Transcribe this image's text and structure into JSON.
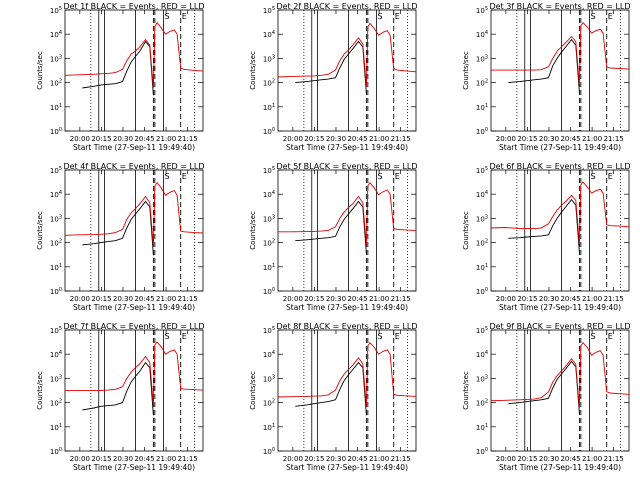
{
  "chart_data": {
    "type": "line",
    "layout": "3x3 grid",
    "xlabel": "Start Time (27-Sep-11 19:49:40)",
    "ylabel": "Counts/sec",
    "x_unit": "minutes after 19:49:40",
    "xlim": [
      0,
      96
    ],
    "ylim": [
      1,
      100000
    ],
    "y_scale": "log",
    "x_tick_labels": [
      {
        "value": 10.33,
        "label": "20:00"
      },
      {
        "value": 25.33,
        "label": "20:15"
      },
      {
        "value": 40.33,
        "label": "20:30"
      },
      {
        "value": 55.33,
        "label": "20:45"
      },
      {
        "value": 70.33,
        "label": "21:00"
      },
      {
        "value": 85.33,
        "label": "21:15"
      }
    ],
    "y_tick_labels": [
      {
        "value": 1,
        "label": "10^0"
      },
      {
        "value": 10,
        "label": "10^1"
      },
      {
        "value": 100,
        "label": "10^2"
      },
      {
        "value": 1000,
        "label": "10^3"
      },
      {
        "value": 10000,
        "label": "10^4"
      },
      {
        "value": 100000,
        "label": "10^5"
      }
    ],
    "vertical_markers": {
      "dotted": [
        18.0,
        90.0
      ],
      "solid": [
        23.5,
        27.5,
        49.0,
        68.5
      ],
      "dashed": [
        61.5,
        62.5,
        80.5
      ]
    },
    "marker_letters": [
      {
        "text": "S",
        "x": 68.5
      },
      {
        "text": "E",
        "x": 80.5
      }
    ],
    "panels": [
      {
        "title": "Det 1f BLACK = Events, RED = LLD",
        "series": [
          {
            "name": "Events",
            "color": "#000000",
            "x": [
              12,
              20,
              25,
              30,
              35,
              40,
              43,
              46,
              49,
              52,
              56,
              59,
              61.5
            ],
            "y": [
              60,
              70,
              80,
              85,
              90,
              110,
              300,
              700,
              1200,
              2000,
              5000,
              3000,
              30
            ]
          },
          {
            "name": "LLD",
            "color": "#e00000",
            "x": [
              0,
              10,
              20,
              25,
              30,
              35,
              40,
              43,
              46,
              49,
              52,
              56,
              59,
              61.5,
              62.5,
              64,
              67,
              70,
              73,
              76,
              78,
              80.5,
              83,
              90,
              96
            ],
            "y": [
              200,
              210,
              220,
              230,
              240,
              260,
              350,
              800,
              1500,
              2000,
              3000,
              6000,
              3500,
              60,
              20000,
              30000,
              18000,
              10000,
              13000,
              15000,
              10000,
              400,
              350,
              320,
              300
            ]
          }
        ]
      },
      {
        "title": "Det 2f BLACK = Events, RED = LLD",
        "series": [
          {
            "name": "Events",
            "color": "#000000",
            "x": [
              12,
              20,
              25,
              30,
              35,
              40,
              43,
              46,
              49,
              52,
              56,
              59,
              61.5
            ],
            "y": [
              100,
              110,
              120,
              130,
              140,
              160,
              400,
              900,
              1500,
              2500,
              5000,
              3000,
              35
            ]
          },
          {
            "name": "LLD",
            "color": "#e00000",
            "x": [
              0,
              10,
              20,
              25,
              30,
              35,
              40,
              43,
              46,
              49,
              52,
              56,
              59,
              61.5,
              62.5,
              64,
              67,
              70,
              73,
              76,
              78,
              80.5,
              83,
              90,
              96
            ],
            "y": [
              170,
              180,
              185,
              190,
              200,
              220,
              330,
              800,
              1500,
              2200,
              3500,
              7000,
              4000,
              70,
              20000,
              28000,
              17000,
              9000,
              12000,
              14000,
              9000,
              380,
              330,
              300,
              280
            ]
          }
        ]
      },
      {
        "title": "Det 3f BLACK = Events, RED = LLD",
        "series": [
          {
            "name": "Events",
            "color": "#000000",
            "x": [
              12,
              20,
              25,
              30,
              35,
              40,
              43,
              46,
              49,
              52,
              56,
              59,
              61.5
            ],
            "y": [
              100,
              110,
              120,
              130,
              140,
              160,
              500,
              1000,
              1800,
              3000,
              6000,
              3500,
              40
            ]
          },
          {
            "name": "LLD",
            "color": "#e00000",
            "x": [
              0,
              10,
              20,
              25,
              30,
              35,
              40,
              43,
              46,
              49,
              52,
              56,
              59,
              61.5,
              62.5,
              64,
              67,
              70,
              73,
              76,
              78,
              80.5,
              83,
              90,
              96
            ],
            "y": [
              330,
              330,
              330,
              330,
              330,
              340,
              450,
              1000,
              2000,
              3000,
              4500,
              8000,
              5000,
              80,
              22000,
              30000,
              20000,
              11000,
              14000,
              16000,
              11000,
              450,
              400,
              380,
              360
            ]
          }
        ]
      },
      {
        "title": "Det 4f BLACK = Events, RED = LLD",
        "series": [
          {
            "name": "Events",
            "color": "#000000",
            "x": [
              12,
              20,
              25,
              30,
              35,
              40,
              43,
              46,
              49,
              52,
              56,
              59,
              61.5
            ],
            "y": [
              80,
              90,
              100,
              110,
              120,
              150,
              400,
              900,
              1500,
              2500,
              5000,
              3000,
              30
            ]
          },
          {
            "name": "LLD",
            "color": "#e00000",
            "x": [
              0,
              10,
              20,
              25,
              30,
              35,
              40,
              43,
              46,
              49,
              52,
              56,
              59,
              61.5,
              62.5,
              64,
              67,
              70,
              73,
              76,
              78,
              80.5,
              83,
              90,
              96
            ],
            "y": [
              200,
              210,
              215,
              220,
              230,
              260,
              350,
              900,
              1700,
              2500,
              4000,
              8000,
              4500,
              70,
              22000,
              30000,
              18000,
              9000,
              12000,
              14000,
              9000,
              300,
              280,
              260,
              250
            ]
          }
        ]
      },
      {
        "title": "Det 5f BLACK = Events, RED = LLD",
        "series": [
          {
            "name": "Events",
            "color": "#000000",
            "x": [
              12,
              20,
              25,
              30,
              35,
              40,
              43,
              46,
              49,
              52,
              56,
              59,
              61.5
            ],
            "y": [
              120,
              130,
              140,
              150,
              160,
              180,
              450,
              900,
              1500,
              2500,
              5000,
              3000,
              35
            ]
          },
          {
            "name": "LLD",
            "color": "#e00000",
            "x": [
              0,
              10,
              20,
              25,
              30,
              35,
              40,
              43,
              46,
              49,
              52,
              56,
              59,
              61.5,
              62.5,
              64,
              67,
              70,
              73,
              76,
              78,
              80.5,
              83,
              90,
              96
            ],
            "y": [
              280,
              280,
              285,
              290,
              300,
              320,
              450,
              1000,
              1800,
              2800,
              4000,
              8000,
              4500,
              80,
              22000,
              30000,
              18000,
              9500,
              12500,
              15000,
              10000,
              380,
              350,
              330,
              320
            ]
          }
        ]
      },
      {
        "title": "Det 6f BLACK = Events, RED = LLD",
        "series": [
          {
            "name": "Events",
            "color": "#000000",
            "x": [
              12,
              20,
              25,
              30,
              35,
              40,
              43,
              46,
              49,
              52,
              56,
              59,
              61.5
            ],
            "y": [
              150,
              160,
              170,
              180,
              190,
              210,
              500,
              1000,
              1800,
              3000,
              6000,
              3500,
              40
            ]
          },
          {
            "name": "LLD",
            "color": "#e00000",
            "x": [
              0,
              10,
              20,
              25,
              30,
              35,
              40,
              43,
              46,
              49,
              52,
              56,
              59,
              61.5,
              62.5,
              64,
              67,
              70,
              73,
              76,
              78,
              80.5,
              83,
              90,
              96
            ],
            "y": [
              400,
              420,
              380,
              380,
              380,
              400,
              600,
              1200,
              2200,
              3500,
              5000,
              9000,
              5500,
              90,
              24000,
              32000,
              20000,
              11000,
              14000,
              16000,
              11000,
              550,
              500,
              480,
              450
            ]
          }
        ]
      },
      {
        "title": "Det 7f BLACK = Events, RED = LLD",
        "series": [
          {
            "name": "Events",
            "color": "#000000",
            "x": [
              12,
              20,
              25,
              30,
              35,
              40,
              43,
              46,
              49,
              52,
              56,
              59,
              61.5
            ],
            "y": [
              50,
              60,
              70,
              75,
              80,
              100,
              300,
              700,
              1200,
              2000,
              4500,
              2800,
              30
            ]
          },
          {
            "name": "LLD",
            "color": "#e00000",
            "x": [
              0,
              10,
              20,
              25,
              30,
              35,
              40,
              43,
              46,
              49,
              52,
              56,
              59,
              61.5,
              62.5,
              64,
              67,
              70,
              73,
              76,
              78,
              80.5,
              83,
              90,
              96
            ],
            "y": [
              320,
              320,
              320,
              320,
              330,
              350,
              450,
              1000,
              1800,
              2800,
              4000,
              8000,
              4500,
              80,
              24000,
              32000,
              20000,
              10000,
              13000,
              15000,
              10000,
              380,
              360,
              340,
              330
            ]
          }
        ]
      },
      {
        "title": "Det 8f BLACK = Events, RED = LLD",
        "series": [
          {
            "name": "Events",
            "color": "#000000",
            "x": [
              12,
              20,
              25,
              30,
              35,
              40,
              43,
              46,
              49,
              52,
              56,
              59,
              61.5
            ],
            "y": [
              70,
              80,
              90,
              100,
              110,
              130,
              350,
              800,
              1400,
              2300,
              4500,
              2800,
              30
            ]
          },
          {
            "name": "LLD",
            "color": "#e00000",
            "x": [
              0,
              10,
              20,
              25,
              30,
              35,
              40,
              43,
              46,
              49,
              52,
              56,
              59,
              61.5,
              62.5,
              64,
              67,
              70,
              73,
              76,
              78,
              80.5,
              83,
              90,
              96
            ],
            "y": [
              170,
              175,
              180,
              185,
              190,
              210,
              330,
              800,
              1500,
              2300,
              3500,
              7000,
              4000,
              70,
              22000,
              30000,
              19000,
              10000,
              13000,
              15000,
              10000,
              220,
              200,
              190,
              180
            ]
          }
        ]
      },
      {
        "title": "Det 9f BLACK = Events, RED = LLD",
        "series": [
          {
            "name": "Events",
            "color": "#000000",
            "x": [
              12,
              20,
              25,
              30,
              35,
              40,
              43,
              46,
              49,
              52,
              56,
              59,
              61.5
            ],
            "y": [
              90,
              100,
              110,
              120,
              130,
              150,
              400,
              900,
              1500,
              2500,
              5000,
              3000,
              35
            ]
          },
          {
            "name": "LLD",
            "color": "#e00000",
            "x": [
              0,
              10,
              20,
              25,
              30,
              35,
              40,
              43,
              46,
              49,
              52,
              56,
              59,
              61.5,
              62.5,
              64,
              67,
              70,
              73,
              76,
              78,
              80.5,
              83,
              90,
              96
            ],
            "y": [
              120,
              125,
              130,
              135,
              140,
              160,
              280,
              700,
              1300,
              2000,
              3200,
              6500,
              3800,
              60,
              22000,
              30000,
              19000,
              9000,
              12000,
              14000,
              9000,
              280,
              250,
              230,
              220
            ]
          }
        ]
      }
    ]
  }
}
